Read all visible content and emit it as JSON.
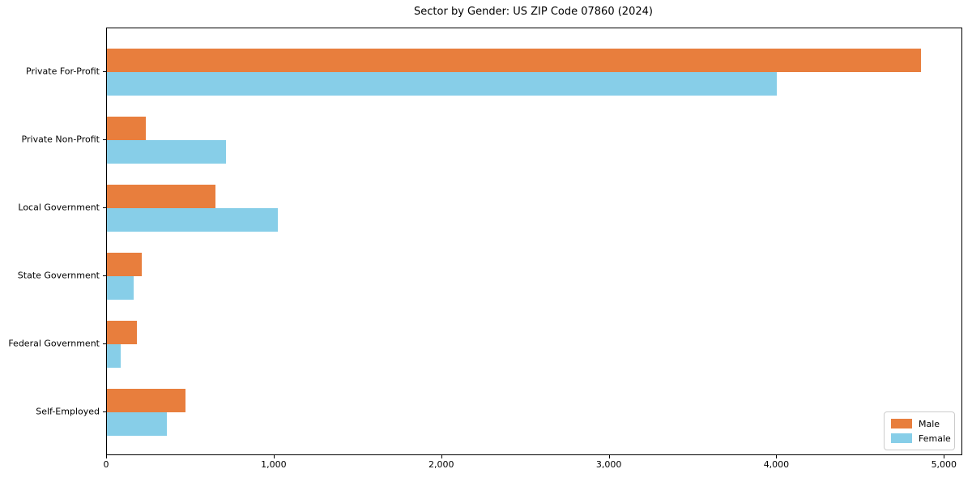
{
  "page": {
    "background": "#ffffff"
  },
  "chart_data": {
    "type": "bar",
    "orientation": "horizontal",
    "title": "Sector by Gender: US ZIP Code 07860 (2024)",
    "categories": [
      "Private For-Profit",
      "Private Non-Profit",
      "Local Government",
      "State Government",
      "Federal Government",
      "Self-Employed"
    ],
    "series": [
      {
        "name": "Male",
        "color": "#e87e3d",
        "values": [
          4860,
          230,
          650,
          210,
          180,
          470
        ]
      },
      {
        "name": "Female",
        "color": "#87cee8",
        "values": [
          4000,
          710,
          1020,
          160,
          80,
          360
        ]
      }
    ],
    "xlabel": "",
    "ylabel": "",
    "xlim": [
      0,
      5100
    ],
    "xticks": [
      {
        "value": 0,
        "label": "0"
      },
      {
        "value": 1000,
        "label": "1,000"
      },
      {
        "value": 2000,
        "label": "2,000"
      },
      {
        "value": 3000,
        "label": "3,000"
      },
      {
        "value": 4000,
        "label": "4,000"
      },
      {
        "value": 5000,
        "label": "5,000"
      }
    ],
    "grid": false,
    "legend_position": "lower-right"
  }
}
